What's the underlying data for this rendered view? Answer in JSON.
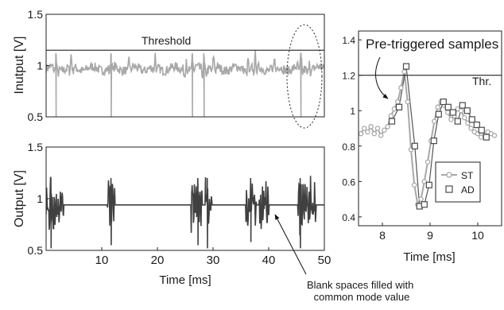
{
  "chart_data": [
    {
      "type": "line",
      "ylabel": "Inutput [V]",
      "ylim": [
        0.5,
        1.5
      ],
      "yticks": [
        "0.5",
        "1",
        "1.5"
      ],
      "xlim": [
        0,
        50
      ],
      "threshold": {
        "label": "Threshold",
        "value": 1.15
      },
      "series": [
        {
          "color": "#a8a8a8",
          "baseline": 0.97,
          "spikes_ms": [
            1.8,
            4.5,
            11.7,
            14.9,
            19.6,
            25.2,
            26.3,
            28.4,
            30.1,
            36.3,
            37.6,
            41.0,
            45.8,
            47.3
          ],
          "deep_dips_ms": [
            1.8,
            11.7,
            26.3,
            28.4,
            45.8
          ]
        }
      ],
      "annotation": {
        "type": "dotted-ellipse",
        "x_ms": 45.8
      }
    },
    {
      "type": "line",
      "xlabel": "Time [ms]",
      "ylabel": "Output [V]",
      "xlim": [
        0,
        50
      ],
      "ylim": [
        0.5,
        1.5
      ],
      "xticks": [
        "10",
        "20",
        "30",
        "40",
        "50"
      ],
      "yticks": [
        "0.5",
        "1",
        "1.5"
      ],
      "series": [
        {
          "color": "#404040",
          "common_mode_value": 0.94,
          "bursts_ms": [
            [
              0.0,
              3.2
            ],
            [
              11.0,
              12.4
            ],
            [
              26.0,
              28.0
            ],
            [
              28.6,
              29.8
            ],
            [
              35.9,
              37.8
            ],
            [
              38.3,
              40.0
            ],
            [
              45.2,
              46.9
            ],
            [
              47.1,
              48.5
            ]
          ]
        }
      ],
      "annotation": "Blank spaces filled with common mode value"
    },
    {
      "type": "scatter",
      "xlabel": "Time [ms]",
      "xlim": [
        7.5,
        10.5
      ],
      "ylim": [
        0.35,
        1.45
      ],
      "xticks": [
        "8",
        "9",
        "10"
      ],
      "yticks": [
        "0.4",
        "0.6",
        "0.8",
        "1",
        "1.2",
        "1.4"
      ],
      "threshold": {
        "label": "Thr.",
        "value": 1.2
      },
      "annotation": "Pre-triggered samples",
      "legend_position": "lower-right",
      "series": [
        {
          "name": "ST",
          "marker": "circle",
          "color": "#a8a8a8",
          "x": [
            7.55,
            7.62,
            7.69,
            7.76,
            7.83,
            7.9,
            7.97,
            8.04,
            8.11,
            8.18,
            8.25,
            8.32,
            8.39,
            8.46,
            8.53,
            8.6,
            8.67,
            8.74,
            8.81,
            8.88,
            8.95,
            9.02,
            9.09,
            9.16,
            9.23,
            9.3,
            9.37,
            9.44,
            9.51,
            9.58,
            9.65,
            9.72,
            9.79,
            9.86,
            9.93,
            10.0,
            10.07,
            10.14,
            10.21,
            10.28,
            10.35
          ],
          "y": [
            0.87,
            0.9,
            0.88,
            0.91,
            0.87,
            0.9,
            0.86,
            0.89,
            0.91,
            0.97,
            1.01,
            1.05,
            1.13,
            1.22,
            1.05,
            0.78,
            0.58,
            0.47,
            0.5,
            0.6,
            0.71,
            0.83,
            0.94,
            1.02,
            1.05,
            1.03,
            0.99,
            0.95,
            0.97,
            1.01,
            1.0,
            0.96,
            0.93,
            0.9,
            0.88,
            0.87,
            0.85,
            0.86,
            0.88,
            0.87,
            0.86
          ]
        },
        {
          "name": "AD",
          "marker": "square",
          "color": "#4a4a4a",
          "x": [
            8.2,
            8.35,
            8.5,
            8.68,
            8.78,
            8.88,
            8.98,
            9.08,
            9.18,
            9.28,
            9.38,
            9.48,
            9.58,
            9.68,
            9.78,
            9.88,
            9.98,
            10.08,
            10.18
          ],
          "y": [
            0.94,
            1.02,
            1.25,
            0.8,
            0.46,
            0.47,
            0.58,
            0.83,
            0.98,
            1.05,
            1.02,
            0.99,
            0.94,
            1.03,
            1.0,
            0.95,
            0.92,
            0.89,
            0.85
          ]
        }
      ]
    }
  ]
}
